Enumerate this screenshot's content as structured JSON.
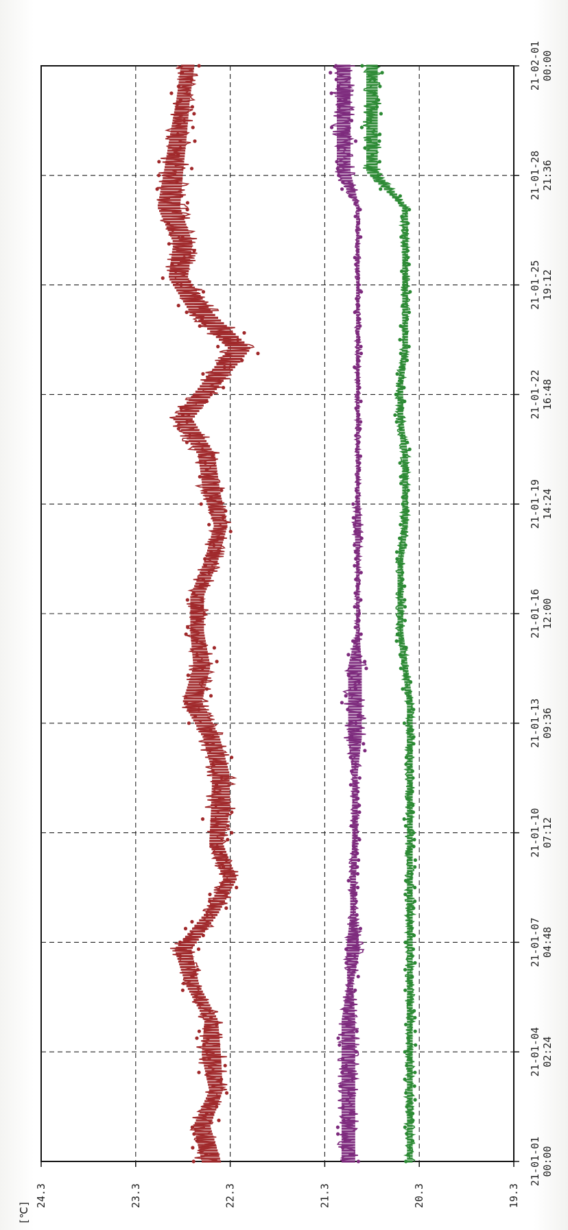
{
  "chart_data": {
    "type": "line",
    "orientation": "rotated-90-ccw",
    "unit_label": "[℃]",
    "y_ticks": [
      "24.3",
      "23.3",
      "22.3",
      "21.3",
      "20.3",
      "19.3"
    ],
    "ylim": [
      19.3,
      24.3
    ],
    "x_ticks": [
      {
        "date": "21-01-01",
        "time": "00:00"
      },
      {
        "date": "21-01-04",
        "time": "02:24"
      },
      {
        "date": "21-01-07",
        "time": "04:48"
      },
      {
        "date": "21-01-10",
        "time": "07:12"
      },
      {
        "date": "21-01-13",
        "time": "09:36"
      },
      {
        "date": "21-01-16",
        "time": "12:00"
      },
      {
        "date": "21-01-19",
        "time": "14:24"
      },
      {
        "date": "21-01-22",
        "time": "16:48"
      },
      {
        "date": "21-01-25",
        "time": "19:12"
      },
      {
        "date": "21-01-28",
        "time": "21:36"
      },
      {
        "date": "21-02-01",
        "time": "00:00"
      }
    ],
    "xlim": [
      "21-01-01 00:00",
      "21-02-01 00:00"
    ],
    "grid": true,
    "series": [
      {
        "color": "#a0282a",
        "x": [
          "21-01-01 00:00",
          "21-01-02 00:00",
          "21-01-03 00:00",
          "21-01-04 00:00",
          "21-01-05 00:00",
          "21-01-06 00:00",
          "21-01-07 00:00",
          "21-01-08 00:00",
          "21-01-09 00:00",
          "21-01-10 00:00",
          "21-01-11 00:00",
          "21-01-12 00:00",
          "21-01-13 00:00",
          "21-01-14 00:00",
          "21-01-15 00:00",
          "21-01-16 00:00",
          "21-01-17 00:00",
          "21-01-18 00:00",
          "21-01-19 00:00",
          "21-01-20 00:00",
          "21-01-21 00:00",
          "21-01-22 00:00",
          "21-01-23 00:00",
          "21-01-24 00:00",
          "21-01-25 00:00",
          "21-01-26 00:00",
          "21-01-27 00:00",
          "21-01-28 00:00",
          "21-01-29 00:00",
          "21-01-30 00:00",
          "21-01-31 00:00",
          "21-02-01 00:00"
        ],
        "y": [
          22.5,
          22.6,
          22.45,
          22.5,
          22.5,
          22.7,
          22.8,
          22.5,
          22.3,
          22.45,
          22.4,
          22.4,
          22.5,
          22.7,
          22.6,
          22.65,
          22.65,
          22.5,
          22.4,
          22.5,
          22.55,
          22.8,
          22.5,
          22.2,
          22.6,
          22.85,
          22.8,
          22.95,
          22.9,
          22.85,
          22.8,
          22.75
        ],
        "band": [
          0.17,
          0.15,
          0.12,
          0.17,
          0.12,
          0.12,
          0.15,
          0.12,
          0.12,
          0.12,
          0.17,
          0.15,
          0.15,
          0.17,
          0.15,
          0.12,
          0.12,
          0.12,
          0.12,
          0.15,
          0.15,
          0.17,
          0.17,
          0.2,
          0.2,
          0.17,
          0.17,
          0.2,
          0.17,
          0.15,
          0.12,
          0.12
        ]
      },
      {
        "color": "#7d2a7d",
        "x": [
          "21-01-01 00:00",
          "21-01-02 00:00",
          "21-01-03 00:00",
          "21-01-04 00:00",
          "21-01-05 00:00",
          "21-01-06 00:00",
          "21-01-07 00:00",
          "21-01-08 00:00",
          "21-01-09 00:00",
          "21-01-10 00:00",
          "21-01-11 00:00",
          "21-01-12 00:00",
          "21-01-13 00:00",
          "21-01-14 00:00",
          "21-01-15 00:00",
          "21-01-16 00:00",
          "21-01-17 00:00",
          "21-01-18 00:00",
          "21-01-19 00:00",
          "21-01-20 00:00",
          "21-01-21 00:00",
          "21-01-22 00:00",
          "21-01-23 00:00",
          "21-01-24 00:00",
          "21-01-25 00:00",
          "21-01-26 00:00",
          "21-01-27 00:00",
          "21-01-28 00:00",
          "21-01-29 00:00",
          "21-01-30 00:00",
          "21-01-31 00:00",
          "21-02-01 00:00"
        ],
        "y": [
          21.05,
          21.05,
          21.05,
          21.05,
          21.05,
          21.03,
          21.0,
          21.0,
          21.0,
          20.98,
          20.98,
          20.98,
          20.98,
          20.98,
          20.98,
          20.95,
          20.95,
          20.95,
          20.95,
          20.95,
          20.95,
          20.95,
          20.95,
          20.95,
          20.95,
          20.95,
          20.95,
          20.95,
          21.1,
          21.1,
          21.1,
          21.1
        ],
        "band": [
          0.12,
          0.12,
          0.12,
          0.12,
          0.12,
          0.05,
          0.12,
          0.05,
          0.05,
          0.05,
          0.05,
          0.05,
          0.12,
          0.12,
          0.12,
          0.03,
          0.03,
          0.03,
          0.06,
          0.03,
          0.03,
          0.03,
          0.03,
          0.03,
          0.03,
          0.03,
          0.03,
          0.03,
          0.12,
          0.12,
          0.12,
          0.12
        ]
      },
      {
        "color": "#2c8a34",
        "x": [
          "21-01-01 00:00",
          "21-01-02 00:00",
          "21-01-03 00:00",
          "21-01-04 00:00",
          "21-01-05 00:00",
          "21-01-06 00:00",
          "21-01-07 00:00",
          "21-01-08 00:00",
          "21-01-09 00:00",
          "21-01-10 00:00",
          "21-01-11 00:00",
          "21-01-12 00:00",
          "21-01-13 00:00",
          "21-01-14 00:00",
          "21-01-15 00:00",
          "21-01-16 00:00",
          "21-01-17 00:00",
          "21-01-18 00:00",
          "21-01-19 00:00",
          "21-01-20 00:00",
          "21-01-21 00:00",
          "21-01-22 00:00",
          "21-01-23 00:00",
          "21-01-24 00:00",
          "21-01-25 00:00",
          "21-01-26 00:00",
          "21-01-27 00:00",
          "21-01-28 00:00",
          "21-01-29 00:00",
          "21-01-30 00:00",
          "21-01-31 00:00",
          "21-02-01 00:00"
        ],
        "y": [
          20.4,
          20.4,
          20.4,
          20.4,
          20.4,
          20.4,
          20.4,
          20.4,
          20.4,
          20.4,
          20.4,
          20.4,
          20.4,
          20.4,
          20.45,
          20.5,
          20.5,
          20.5,
          20.45,
          20.45,
          20.45,
          20.5,
          20.5,
          20.45,
          20.45,
          20.45,
          20.45,
          20.45,
          20.8,
          20.8,
          20.8,
          20.8
        ],
        "band": [
          0.05,
          0.05,
          0.05,
          0.05,
          0.05,
          0.05,
          0.05,
          0.05,
          0.05,
          0.05,
          0.05,
          0.05,
          0.05,
          0.05,
          0.05,
          0.05,
          0.05,
          0.05,
          0.05,
          0.05,
          0.05,
          0.05,
          0.05,
          0.05,
          0.05,
          0.05,
          0.05,
          0.05,
          0.1,
          0.1,
          0.1,
          0.1
        ]
      }
    ]
  }
}
